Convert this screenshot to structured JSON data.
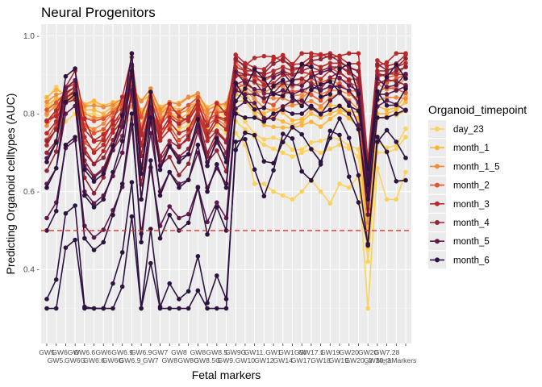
{
  "chart_data": {
    "type": "line",
    "title": "Neural Progenitors",
    "xlabel": "Fetal markers",
    "ylabel": "Predicting Organoid celltypes (AUC)",
    "ylim": [
      0.21,
      1.03
    ],
    "yticks": [
      0.4,
      0.6,
      0.8,
      1.0
    ],
    "ytick_labels": [
      "0.4 -",
      "0.6 -",
      "0.8 -",
      "1.0 -"
    ],
    "reference_line": {
      "y": 0.5,
      "color": "#e8312a",
      "style": "dashed"
    },
    "x_tick_labels_row1": [
      "GW5",
      "GW6",
      "GW6.6",
      "GW6.7",
      "GW6.9",
      "GW7",
      "GW8",
      "GW8.3",
      "GW8.5",
      "GW9",
      "GW10",
      "GW12",
      "GW14",
      "GW17.1",
      "GW18",
      "GW19",
      "GW20_2",
      "GW7.28"
    ],
    "x_tick_labels_row2": [
      "GW5.",
      "GW6.",
      "GW6.6",
      "GW6.8",
      "GW6.9_",
      "GW7",
      "GW8",
      "GW8.3",
      "GW8.5",
      "GW9.",
      "GW10",
      "GW12",
      "GW14",
      "GW17.",
      "GW18",
      "GW19.",
      "GW20_2",
      "MetaMarkers"
    ],
    "row1_labels_display": [
      "GW5",
      "GW6GW",
      "GW6.6",
      "GW6",
      "GW6.9",
      "GW6.9",
      "GW7",
      "GW8",
      "GW8",
      "GW8.5",
      "GW9G",
      "GW11.",
      "GW1",
      "GW1GW",
      "GW17.1",
      "GW19",
      "GW20",
      "GW20",
      "GW7.28"
    ],
    "row2_labels_display": [
      "GW5.",
      "GW6G",
      "GW6.6",
      "GW6G",
      "GW6.9_",
      "GW7",
      "GW8",
      "GW8G",
      "GW8.5G",
      "GW9.",
      "GW10",
      "GW12",
      "GW14",
      "GW17.",
      "GW18",
      "GW19.",
      "GW20_2",
      "GW20_3",
      "MetaMarkers"
    ],
    "n_x": 39,
    "legend": {
      "title": "Organoid_timepoint",
      "position": "right",
      "entries": [
        "day_23",
        "month_1",
        "month_1_5",
        "month_2",
        "month_3",
        "month_4",
        "month_5",
        "month_6"
      ]
    },
    "series_colors": [
      "#fcd25a",
      "#fbb53c",
      "#f08a3f",
      "#de5536",
      "#b9292a",
      "#912437",
      "#5f1a4d",
      "#2d1340"
    ],
    "grid": true
  }
}
